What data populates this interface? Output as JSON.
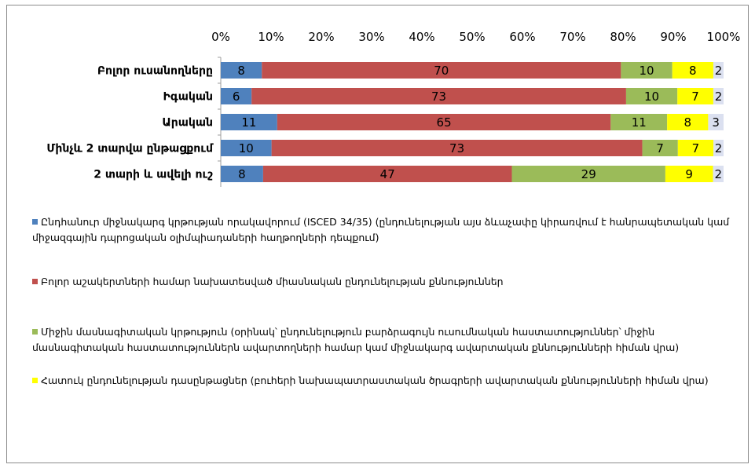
{
  "chart_data": {
    "type": "bar",
    "stacked_percent": true,
    "orientation": "horizontal",
    "title": "",
    "xlabel": "",
    "ylabel": "",
    "xlim": [
      0,
      100
    ],
    "x_ticks": [
      "0%",
      "10%",
      "20%",
      "30%",
      "40%",
      "50%",
      "60%",
      "70%",
      "80%",
      "90%",
      "100%"
    ],
    "grid": false,
    "legend_position": "bottom",
    "categories": [
      "Բոլոր ուսանողները",
      "Իգական",
      "Արական",
      "Մինչև 2 տարվա ընթացքում",
      "2 տարի և ավելի ուշ"
    ],
    "series": [
      {
        "name": "Ընդհանուր միջնակարգ կրթության որակավորում (ISCED 34/35) (ընդունելության այս ձևաչափը կիրառվում է հանրապետական կամ միջազգային դպրոցական օլիմպիադաների հաղթողների դեպքում)",
        "color": "#4f81bd",
        "values": [
          8,
          6,
          11,
          10,
          8
        ]
      },
      {
        "name": "Բոլոր աշակերտների համար նախատեսված միասնական ընդունելության քննություններ",
        "color": "#c0504d",
        "values": [
          70,
          73,
          65,
          73,
          47
        ]
      },
      {
        "name": "Միջին մասնագիտական կրթություն (օրինակ՝ ընդունելություն բարձրագույն ուսումնական հաստատություններ՝ միջին մասնագիտական հաստատություններն ավարտողների համար կամ միջնակարգ ավարտական քննությունների հիման վրա)",
        "color": "#9bbb59",
        "values": [
          10,
          10,
          11,
          7,
          29
        ]
      },
      {
        "name": "Հատուկ ընդունելության դասընթացներ (բուհերի նախապատրաստական ծրագրերի ավարտական քննությունների հիման վրա)",
        "color": "#ffff00",
        "values": [
          8,
          7,
          8,
          7,
          9
        ]
      },
      {
        "name": "",
        "color": "#dbe0f0",
        "values": [
          2,
          2,
          3,
          2,
          2
        ]
      }
    ]
  }
}
